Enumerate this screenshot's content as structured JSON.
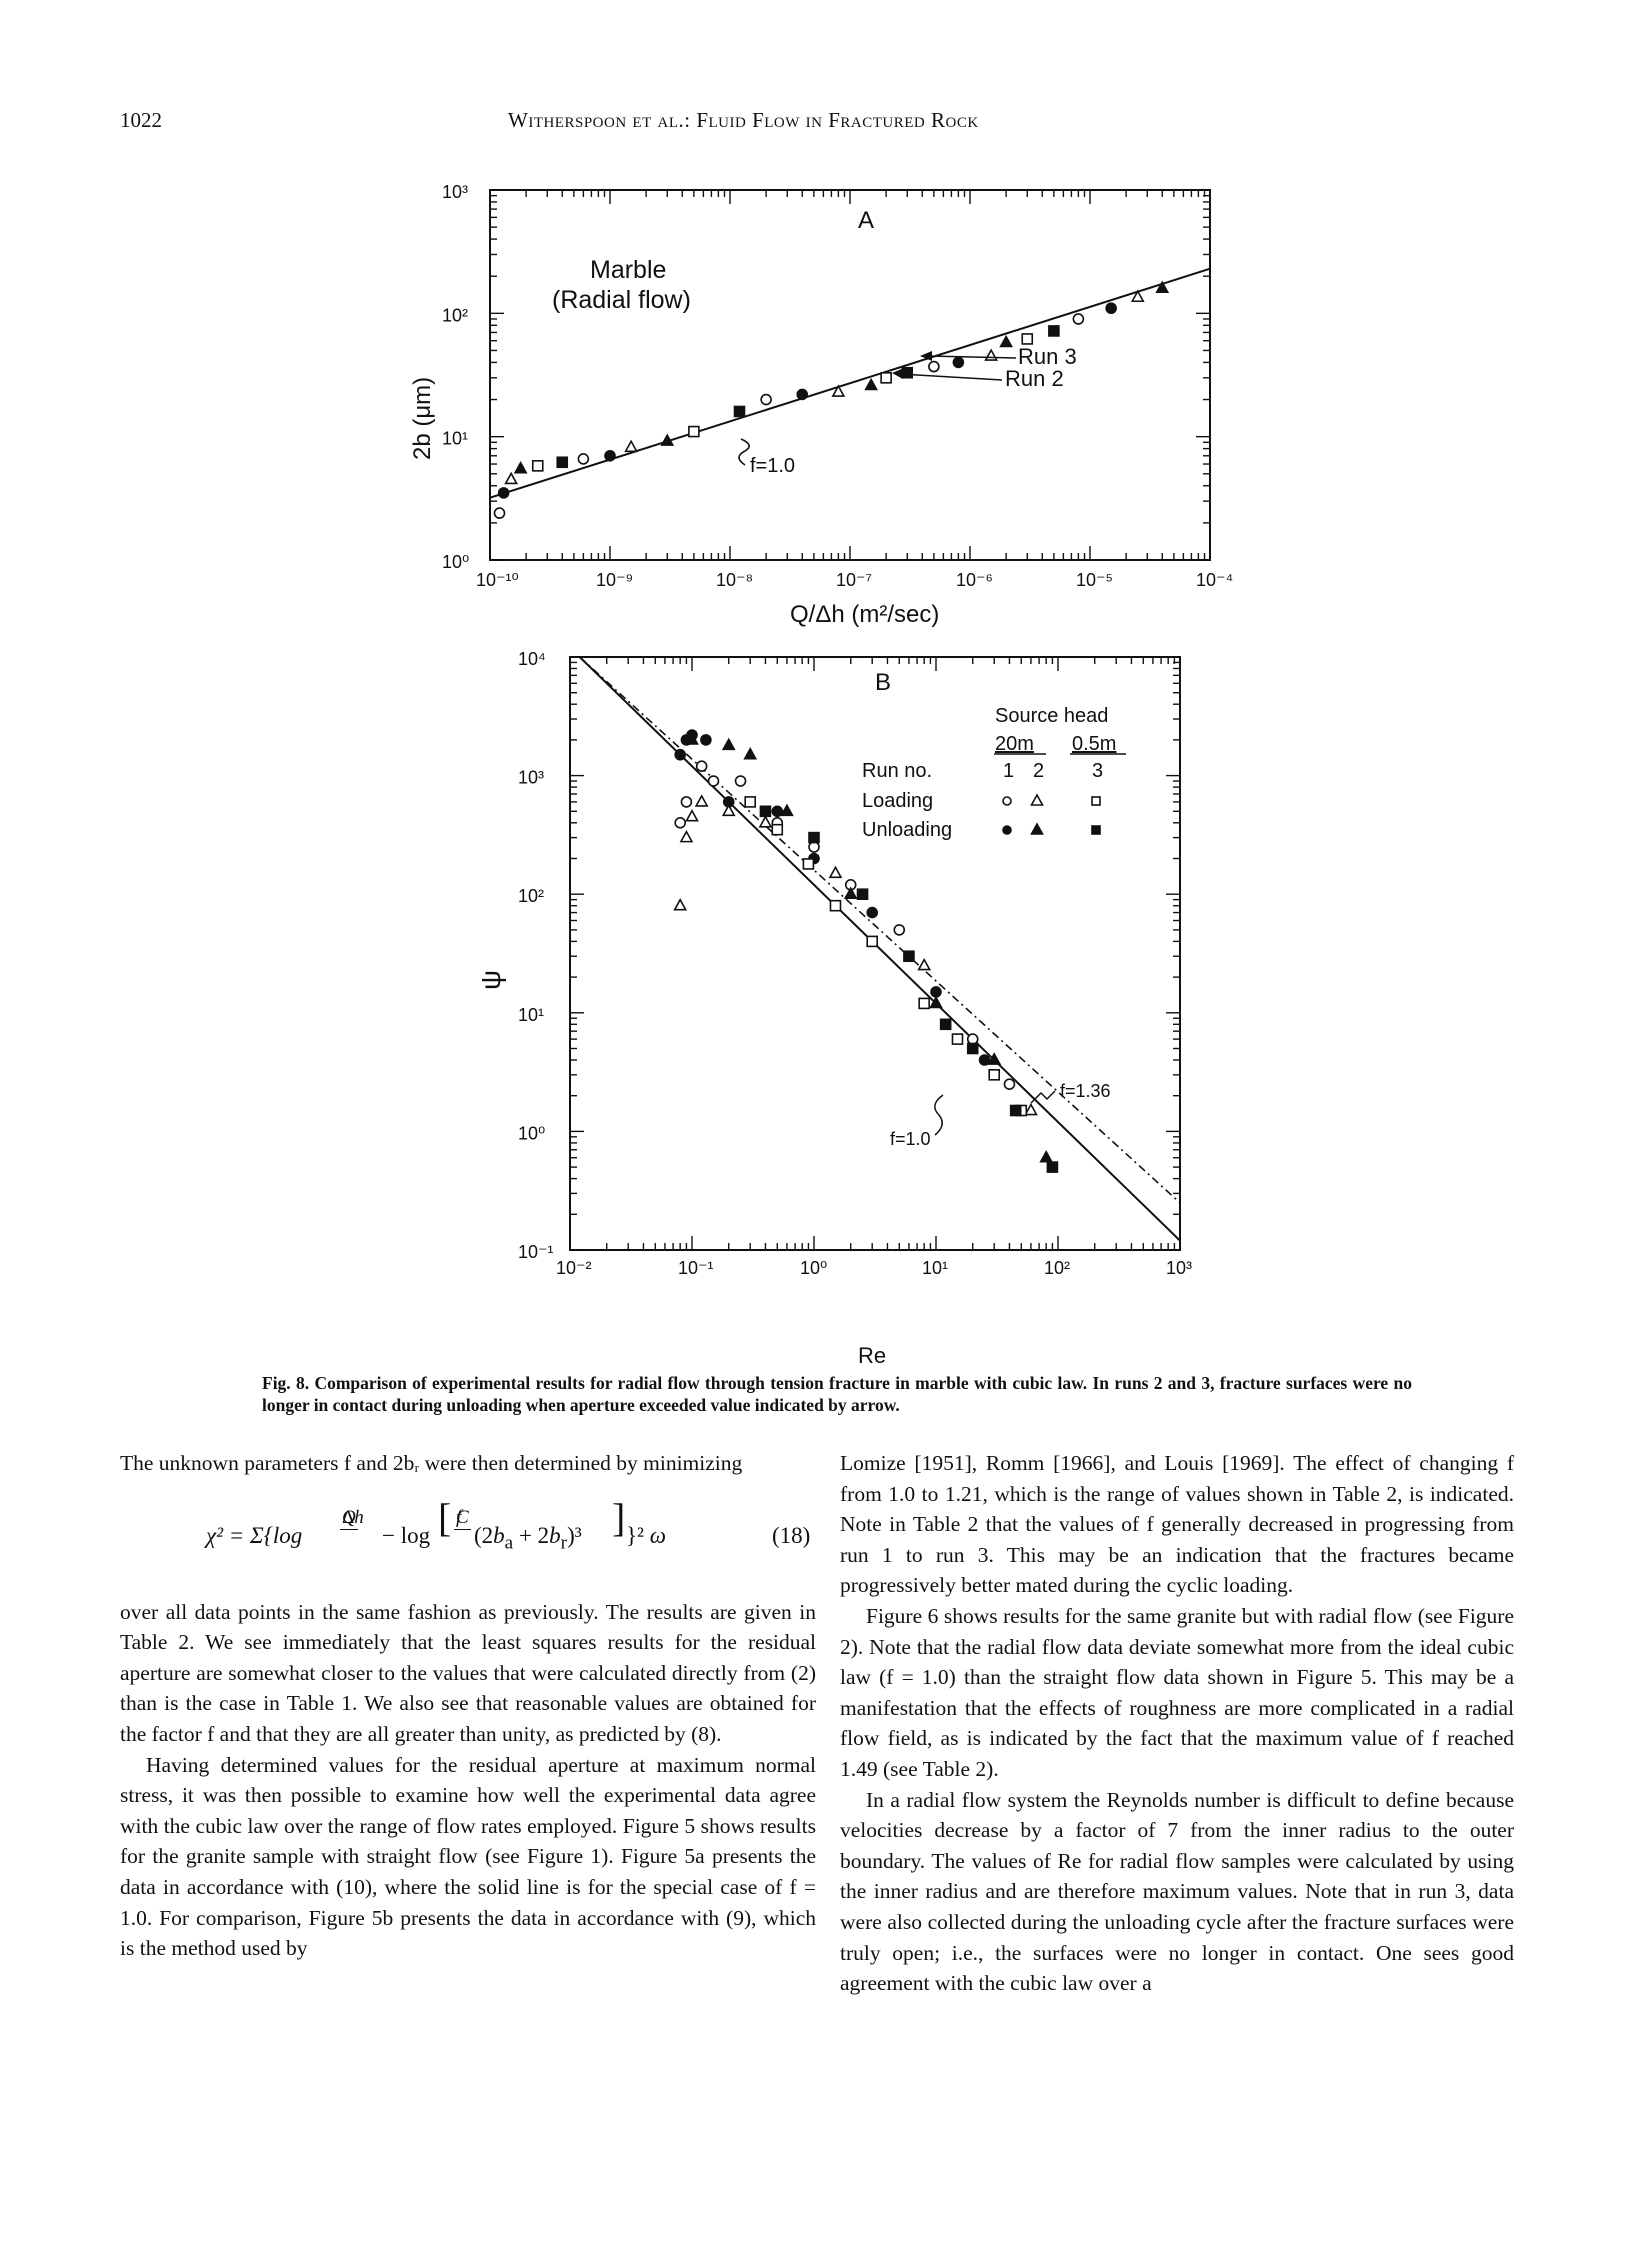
{
  "header": {
    "page_number": "1022",
    "running_title": "Witherspoon et al.: Fluid Flow in Fractured Rock"
  },
  "figure": {
    "panel_a": {
      "panel_label": "A",
      "inner_title_line1": "Marble",
      "inner_title_line2": "(Radial flow)",
      "ylabel": "2b (μm)",
      "xlabel": "Q/Δh (m²/sec)",
      "x_ticks": [
        "10⁻¹⁰",
        "10⁻⁹",
        "10⁻⁸",
        "10⁻⁷",
        "10⁻⁶",
        "10⁻⁵",
        "10⁻⁴"
      ],
      "y_ticks": [
        "10³",
        "10²",
        "10¹",
        "10⁰"
      ],
      "annotation_run3": "Run 3",
      "annotation_run2": "Run 2",
      "annotation_f": "f=1.0"
    },
    "panel_b": {
      "panel_label": "B",
      "ylabel": "ψ",
      "xlabel": "Re",
      "x_ticks": [
        "10⁻²",
        "10⁻¹",
        "10⁰",
        "10¹",
        "10²",
        "10³"
      ],
      "y_ticks": [
        "10⁴",
        "10³",
        "10²",
        "10¹",
        "10⁰",
        "10⁻¹"
      ],
      "legend": {
        "source_head": "Source head",
        "head_20m": "20m",
        "head_05m": "0.5m",
        "run_no": "Run no.",
        "loading": "Loading",
        "unloading": "Unloading",
        "runs": [
          "1",
          "2",
          "3"
        ]
      },
      "annotation_f136": "f=1.36",
      "annotation_f10": "f=1.0"
    },
    "caption": "Fig. 8.  Comparison of experimental results for radial flow through tension fracture in marble with cubic law. In runs 2 and 3, fracture surfaces were no longer in contact during unloading when aperture exceeded value indicated by arrow."
  },
  "chart_data": [
    {
      "type": "scatter",
      "title": "Marble (Radial flow)",
      "xlabel": "Q/Δh (m²/sec)",
      "ylabel": "2b (μm)",
      "x_scale": "log",
      "y_scale": "log",
      "xlim": [
        1e-10,
        0.0001
      ],
      "ylim": [
        1,
        1000
      ],
      "grid": false,
      "x": [
        1.2e-10,
        1.3e-10,
        1.5e-10,
        1.8e-10,
        2.5e-10,
        4e-10,
        6e-10,
        1e-09,
        1.5e-09,
        3e-09,
        5e-09,
        1.2e-08,
        2e-08,
        4e-08,
        8e-08,
        1.5e-07,
        2e-07,
        3e-07,
        5e-07,
        8e-07,
        1.5e-06,
        2e-06,
        3e-06,
        5e-06,
        8e-06,
        1.5e-05,
        2.5e-05,
        4e-05
      ],
      "y": [
        2.4,
        3.5,
        4.5,
        5.5,
        5.8,
        6.2,
        6.6,
        7.0,
        8.2,
        9.2,
        11,
        16,
        20,
        22,
        23,
        26,
        30,
        33,
        37,
        40,
        45,
        58,
        62,
        72,
        90,
        110,
        135,
        160
      ],
      "lines": [
        {
          "name": "f=1.0",
          "x": [
            1e-10,
            0.0001
          ],
          "y": [
            3.2,
            230
          ]
        }
      ]
    },
    {
      "type": "scatter",
      "xlabel": "Re",
      "ylabel": "ψ",
      "x_scale": "log",
      "y_scale": "log",
      "xlim": [
        0.01,
        1000
      ],
      "ylim": [
        0.1,
        10000
      ],
      "grid": false,
      "legend_position": "top-right",
      "series": [
        {
          "name": "1 Loading",
          "marker": "open-circle",
          "x": [
            0.08,
            0.09,
            0.12,
            0.15,
            0.25,
            0.5,
            1.0,
            2.0,
            5.0,
            20,
            40
          ],
          "y": [
            400,
            600,
            1200,
            900,
            900,
            400,
            250,
            120,
            50,
            6,
            2.5
          ]
        },
        {
          "name": "1 Unloading",
          "marker": "filled-circle",
          "x": [
            0.08,
            0.09,
            0.1,
            0.13,
            0.2,
            0.5,
            1.0,
            3.0,
            10,
            25
          ],
          "y": [
            1500,
            2000,
            2200,
            2000,
            600,
            500,
            200,
            70,
            15,
            4
          ]
        },
        {
          "name": "2 Loading",
          "marker": "open-triangle",
          "x": [
            0.08,
            0.09,
            0.1,
            0.12,
            0.2,
            0.4,
            1.5,
            8,
            30,
            60
          ],
          "y": [
            80,
            300,
            450,
            600,
            500,
            400,
            150,
            25,
            4,
            1.5
          ]
        },
        {
          "name": "2 Unloading",
          "marker": "filled-triangle",
          "x": [
            0.1,
            0.2,
            0.3,
            0.6,
            2.0,
            10,
            30,
            80
          ],
          "y": [
            2000,
            1800,
            1500,
            500,
            100,
            12,
            4,
            0.6
          ]
        },
        {
          "name": "3 Loading",
          "marker": "open-square",
          "x": [
            0.3,
            0.5,
            0.9,
            1.5,
            3,
            8,
            15,
            30,
            50
          ],
          "y": [
            600,
            350,
            180,
            80,
            40,
            12,
            6,
            3,
            1.5
          ]
        },
        {
          "name": "3 Unloading",
          "marker": "filled-square",
          "x": [
            0.4,
            1.0,
            2.5,
            6,
            12,
            20,
            45,
            90
          ],
          "y": [
            500,
            300,
            100,
            30,
            8,
            5,
            1.5,
            0.5
          ]
        }
      ],
      "lines": [
        {
          "name": "f=1.0",
          "x": [
            0.012,
            1000
          ],
          "y": [
            10000,
            0.12
          ]
        },
        {
          "name": "f=1.36",
          "x": [
            0.012,
            1000
          ],
          "y": [
            10000,
            0.25
          ]
        }
      ]
    }
  ],
  "text": {
    "left_p1": "The unknown parameters f and 2bᵣ were then determined by minimizing",
    "equation_number": "(18)",
    "left_p2": "over all data points in the same fashion as previously. The results are given in Table 2. We see immediately that the least squares results for the residual aperture are somewhat closer to the values that were calculated directly from (2) than is the case in Table 1. We also see that reasonable values are obtained for the factor f and that they are all greater than unity, as predicted by (8).",
    "left_p3": "Having determined values for the residual aperture at maximum normal stress, it was then possible to examine how well the experimental data agree with the cubic law over the range of flow rates employed. Figure 5 shows results for the granite sample with straight flow (see Figure 1). Figure 5a presents the data in accordance with (10), where the solid line is for the special case of f = 1.0. For comparison, Figure 5b presents the data in accordance with (9), which is the method used by Lomize [1951], Romm [1966], and Louis [1969]. The effect of changing f from 1.0 to 1.21, which is the range of values shown in Table 2, is indicated. Note in Table 2 that the values of f generally decreased in progressing from run 1 to run 3. This may be an indication that the fractures became progressively better mated during the cyclic loading.",
    "right_p2": "Figure 6 shows results for the same granite but with radial flow (see Figure 2). Note that the radial flow data deviate somewhat more from the ideal cubic law (f = 1.0) than the straight flow data shown in Figure 5. This may be a manifestation that the effects of roughness are more complicated in a radial flow field, as is indicated by the fact that the maximum value of f reached 1.49 (see Table 2).",
    "right_p3": "In a radial flow system the Reynolds number is difficult to define because velocities decrease by a factor of 7 from the inner radius to the outer boundary. The values of Re for radial flow samples were calculated by using the inner radius and are therefore maximum values. Note that in run 3, data were also collected during the unloading cycle after the fracture surfaces were truly open; i.e., the surfaces were no longer in contact. One sees good agreement with the cubic law over a"
  }
}
